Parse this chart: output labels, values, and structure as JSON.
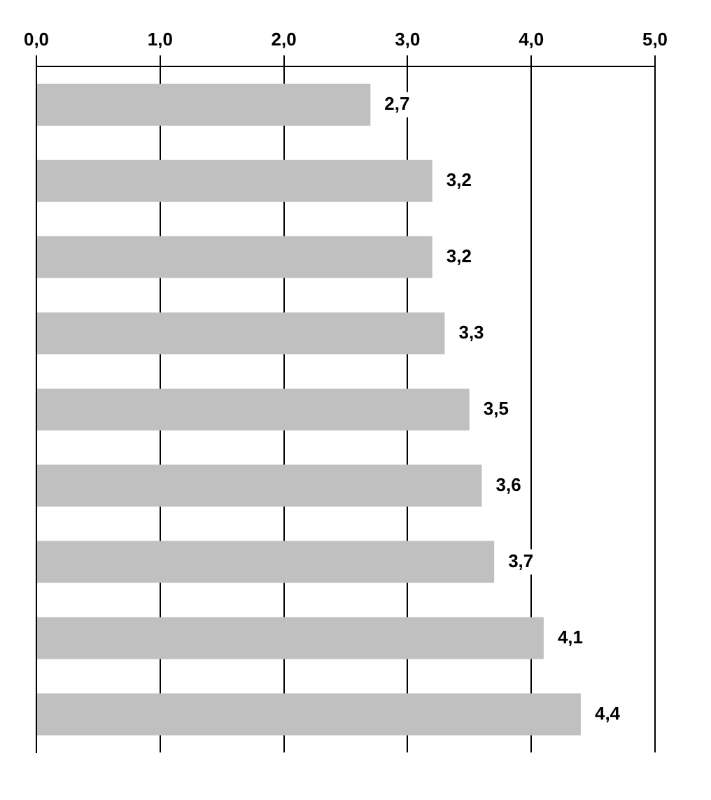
{
  "chart_data": {
    "type": "bar",
    "orientation": "horizontal",
    "categories": [
      null,
      null,
      null,
      null,
      null,
      null,
      null,
      null,
      null
    ],
    "values": [
      2.7,
      3.2,
      3.2,
      3.3,
      3.5,
      3.6,
      3.7,
      4.1,
      4.4
    ],
    "value_labels": [
      "2,7",
      "3,2",
      "3,2",
      "3,3",
      "3,5",
      "3,6",
      "3,7",
      "4,1",
      "4,4"
    ],
    "color": "#c0c0c0",
    "xlim": [
      0,
      5
    ],
    "xticks": [
      {
        "value": 0,
        "label": "0,0"
      },
      {
        "value": 1,
        "label": "1,0"
      },
      {
        "value": 2,
        "label": "2,0"
      },
      {
        "value": 3,
        "label": "3,0"
      },
      {
        "value": 4,
        "label": "4,0"
      },
      {
        "value": 5,
        "label": "5,0"
      }
    ],
    "grid": "x",
    "legend": false
  }
}
